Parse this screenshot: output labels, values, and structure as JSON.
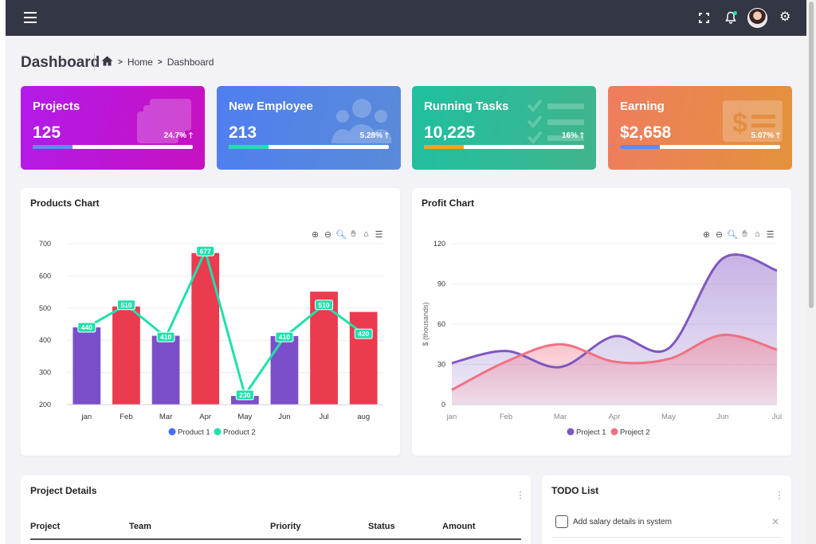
{
  "header": {
    "page_title": "Dashboard"
  },
  "breadcrumb": {
    "items": [
      "Home",
      "Dashboard"
    ]
  },
  "kpis": [
    {
      "title": "Projects",
      "value": "125",
      "pct": "24.7%",
      "progress": 0.25,
      "bg": "#b21be8",
      "bg2": "#c711c0",
      "fill": "#5d8cf0",
      "icon": "layers-icon"
    },
    {
      "title": "New Employee",
      "value": "213",
      "pct": "5.28%",
      "progress": 0.25,
      "bg": "#4f7ef0",
      "bg2": "#5a8bd8",
      "fill": "#1ee0ac",
      "icon": "users-icon"
    },
    {
      "title": "Running Tasks",
      "value": "10,225",
      "pct": "16%",
      "progress": 0.25,
      "bg": "#1fc0a0",
      "bg2": "#41b48c",
      "fill": "#f7a21b",
      "icon": "checklist-icon"
    },
    {
      "title": "Earning",
      "value": "$2,658",
      "pct": "5.07%",
      "progress": 0.25,
      "bg": "#ef7d5e",
      "bg2": "#e2923c",
      "fill": "#5d8cf0",
      "icon": "money-icon"
    }
  ],
  "products_chart": {
    "title": "Products Chart"
  },
  "profit_chart": {
    "title": "Profit Chart"
  },
  "chart_data": [
    {
      "type": "bar",
      "title": "Products Chart",
      "categories": [
        "jan",
        "Feb",
        "Mar",
        "Apr",
        "May",
        "Jun",
        "Jul",
        "aug"
      ],
      "series": [
        {
          "name": "Product 1",
          "type": "bar",
          "values": [
            440,
            505,
            414,
            671,
            227,
            413,
            551,
            488
          ],
          "colors": [
            "#7b4fc9",
            "#ea3b4f",
            "#7b4fc9",
            "#ea3b4f",
            "#7b4fc9",
            "#7b4fc9",
            "#ea3b4f",
            "#ea3b4f"
          ],
          "legend_color": "#4a6cf7"
        },
        {
          "name": "Product 2",
          "type": "line",
          "values": [
            440,
            510,
            410,
            677,
            230,
            410,
            510,
            420
          ],
          "labels": [
            "440",
            "510",
            "410",
            "677",
            "230",
            "410",
            "510",
            "420"
          ],
          "color": "#1ee0ac"
        }
      ],
      "yticks": [
        "200",
        "300",
        "400",
        "500",
        "600",
        "700"
      ],
      "ylim": [
        200,
        700
      ],
      "legend": [
        "Product 1",
        "Product 2"
      ]
    },
    {
      "type": "area",
      "title": "Profit Chart",
      "categories": [
        "jan",
        "Feb",
        "Mar",
        "Apr",
        "May",
        "Jun",
        "Jul"
      ],
      "series": [
        {
          "name": "Project 1",
          "values": [
            31,
            40,
            28,
            51,
            42,
            109,
            100
          ],
          "color": "#7e57c2"
        },
        {
          "name": "Project 2",
          "values": [
            11,
            32,
            45,
            32,
            34,
            52,
            41
          ],
          "color": "#f07181"
        }
      ],
      "yticks": [
        "0",
        "30",
        "60",
        "90",
        "120"
      ],
      "ylim": [
        0,
        120
      ],
      "ylabel": "$ (thousands)",
      "legend": [
        "Project 1",
        "Project 2"
      ]
    }
  ],
  "project_details": {
    "title": "Project Details",
    "columns": [
      "Project",
      "Team",
      "Priority",
      "Status",
      "Amount"
    ]
  },
  "todo": {
    "title": "TODO List",
    "items": [
      {
        "text": "Add salary details in system"
      }
    ]
  },
  "icons": {
    "menu": "menu-icon",
    "fullscreen": "fullscreen-icon",
    "notifications": "bell-icon",
    "settings": "gear-icon"
  }
}
